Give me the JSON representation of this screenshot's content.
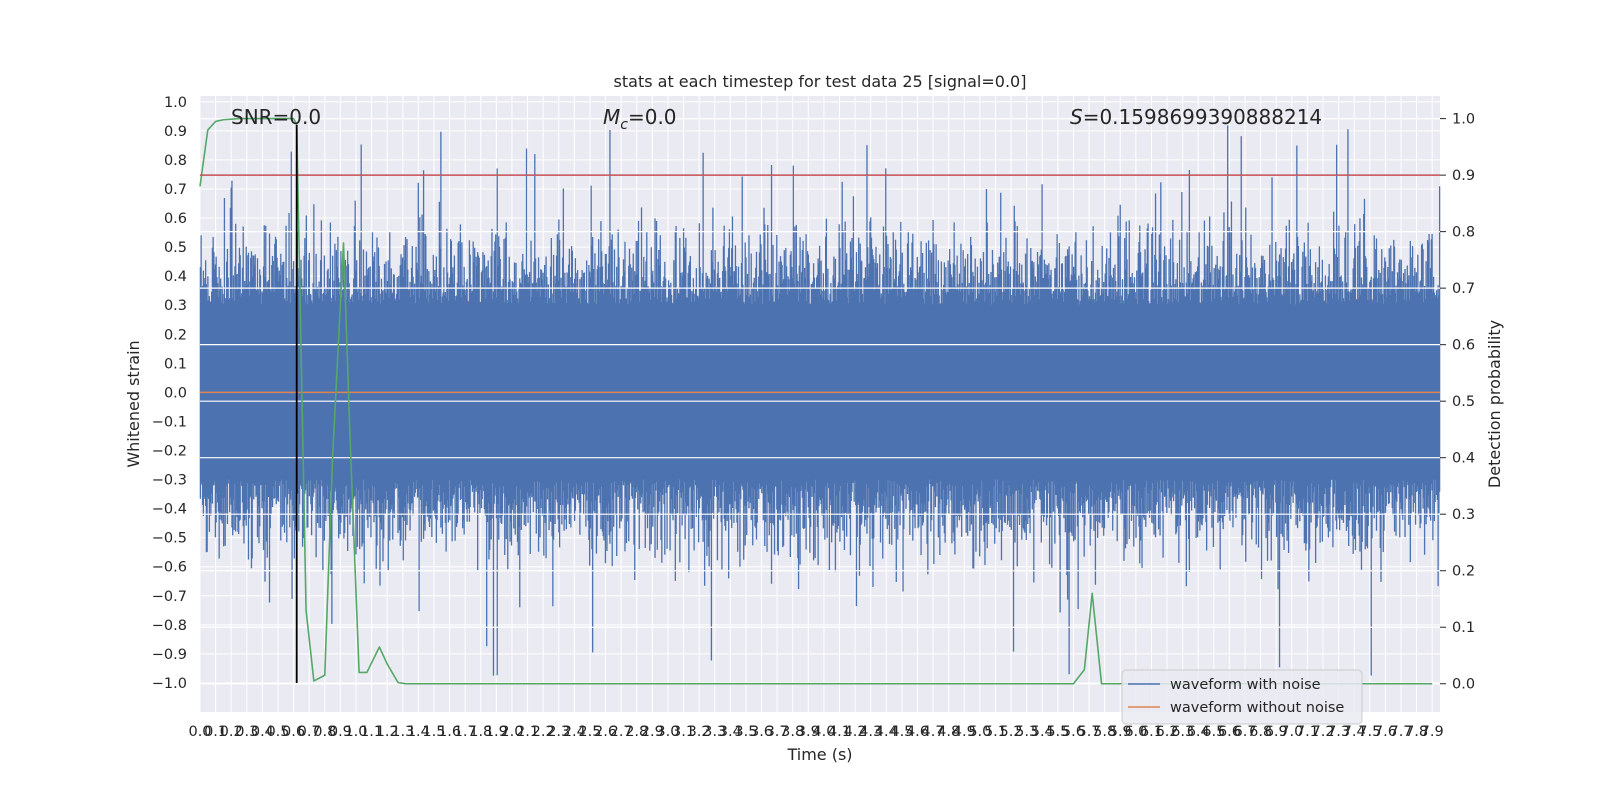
{
  "chart_data": {
    "type": "line",
    "title": "stats at each timestep for test data 25 [signal=0.0]",
    "xlabel": "Time (s)",
    "ylabel": "Whitened strain",
    "ylabel_right": "Detection probability",
    "xlim": [
      0.0,
      7.95
    ],
    "ylim": [
      -1.1,
      1.02
    ],
    "ylim_right": [
      -0.05,
      1.04
    ],
    "grid": true,
    "x_ticks": [
      "0.0",
      "0.1",
      "0.2",
      "0.3",
      "0.4",
      "0.5",
      "0.6",
      "0.7",
      "0.8",
      "0.9",
      "1.0",
      "1.1",
      "1.2",
      "1.3",
      "1.4",
      "1.5",
      "1.6",
      "1.7",
      "1.8",
      "1.9",
      "2.0",
      "2.1",
      "2.2",
      "2.3",
      "2.4",
      "2.5",
      "2.6",
      "2.7",
      "2.8",
      "2.9",
      "3.0",
      "3.1",
      "3.2",
      "3.3",
      "3.4",
      "3.5",
      "3.6",
      "3.7",
      "3.8",
      "3.9",
      "4.0",
      "4.1",
      "4.2",
      "4.3",
      "4.4",
      "4.5",
      "4.6",
      "4.7",
      "4.8",
      "4.9",
      "5.0",
      "5.1",
      "5.2",
      "5.3",
      "5.4",
      "5.5",
      "5.6",
      "5.7",
      "5.8",
      "5.9",
      "6.0",
      "6.1",
      "6.2",
      "6.3",
      "6.4",
      "6.5",
      "6.6",
      "6.7",
      "6.8",
      "6.9",
      "7.0",
      "7.1",
      "7.2",
      "7.3",
      "7.4",
      "7.5",
      "7.6",
      "7.7",
      "7.8",
      "7.9"
    ],
    "y_ticks_left": [
      "1.0",
      "0.9",
      "0.8",
      "0.7",
      "0.6",
      "0.5",
      "0.4",
      "0.3",
      "0.2",
      "0.1",
      "0.0",
      "−0.1",
      "−0.2",
      "−0.3",
      "−0.4",
      "−0.5",
      "−0.6",
      "−0.7",
      "−0.8",
      "−0.9",
      "−1.0"
    ],
    "y_ticks_right": [
      "1.0",
      "0.9",
      "0.8",
      "0.7",
      "0.6",
      "0.5",
      "0.4",
      "0.3",
      "0.2",
      "0.1",
      "0.0"
    ],
    "annotations": {
      "snr": "SNR=0.0",
      "mc_symbol": "M",
      "mc_sub": "c",
      "mc_value": "=0.0",
      "s_symbol": "S",
      "s_value": "=0.1598699390888214"
    },
    "legend": {
      "placement": "lower right",
      "entries": [
        {
          "label": "waveform with noise",
          "color": "#4c72b0"
        },
        {
          "label": "waveform without noise",
          "color": "#dd8452"
        }
      ]
    },
    "series": [
      {
        "name": "waveform with noise",
        "axis": "left",
        "color": "#4c72b0",
        "style": "dense noise",
        "envelope_upper": 0.55,
        "envelope_lower": -0.5,
        "peak_max": 0.92,
        "peak_min": -1.0
      },
      {
        "name": "waveform without noise",
        "axis": "left",
        "color": "#dd8452",
        "x": [
          0.0,
          7.95
        ],
        "y": [
          0.0,
          0.0
        ]
      },
      {
        "axis": "right",
        "color": "#55a868",
        "x": [
          0.0,
          0.05,
          0.1,
          0.15,
          0.25,
          0.35,
          0.45,
          0.55,
          0.6,
          0.62,
          0.68,
          0.73,
          0.8,
          0.85,
          0.92,
          0.96,
          1.02,
          1.07,
          1.15,
          1.2,
          1.27,
          1.32,
          1.4,
          2.0,
          3.0,
          4.0,
          5.0,
          5.6,
          5.67,
          5.72,
          5.78,
          5.9,
          6.5,
          7.0,
          7.5,
          7.9
        ],
        "y": [
          0.88,
          0.98,
          0.995,
          0.998,
          1.0,
          1.0,
          1.0,
          1.0,
          1.0,
          0.99,
          0.13,
          0.005,
          0.015,
          0.4,
          0.78,
          0.45,
          0.02,
          0.02,
          0.065,
          0.035,
          0.002,
          0.0,
          0.0,
          0.0,
          0.0,
          0.0,
          0.0,
          0.0,
          0.025,
          0.16,
          0.0,
          0.0,
          0.0,
          0.0,
          0.0,
          0.0
        ]
      },
      {
        "axis": "right",
        "color": "#c44e52",
        "x": [
          0.0,
          7.95
        ],
        "y": [
          0.9,
          0.9
        ]
      },
      {
        "axis": "left",
        "color": "#000000",
        "x": [
          0.62,
          0.62
        ],
        "y": [
          -1.0,
          0.92
        ]
      }
    ]
  }
}
